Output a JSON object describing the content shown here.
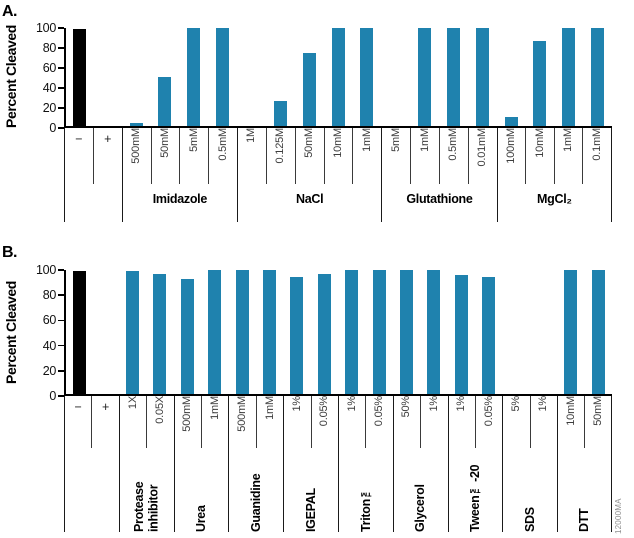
{
  "page": {
    "background": "#ffffff"
  },
  "footer_code": "12000MA",
  "colors": {
    "bar_blue": "#1f82ae",
    "bar_black": "#000000",
    "axis": "#000000",
    "divider": "#3a3a3a"
  },
  "chart_data": [
    {
      "type": "bar",
      "panel": "A.",
      "title": "",
      "ylabel": "Percent Cleaved",
      "xlabel": "",
      "ylim": [
        0,
        100
      ],
      "yticks": [
        "100",
        "80",
        "60",
        "40",
        "20",
        "0"
      ],
      "grid": false,
      "legend": null,
      "groups": [
        {
          "label": "",
          "bars": [
            {
              "tick": "−",
              "value": 99,
              "color": "black"
            },
            {
              "tick": "+",
              "value": 0
            }
          ]
        },
        {
          "label": "Imidazole",
          "bars": [
            {
              "tick": "500mM",
              "value": 3
            },
            {
              "tick": "50mM",
              "value": 50
            },
            {
              "tick": "5mM",
              "value": 100
            },
            {
              "tick": "0.5mM",
              "value": 100
            }
          ]
        },
        {
          "label": "NaCl",
          "bars": [
            {
              "tick": "1M",
              "value": 0
            },
            {
              "tick": "0.125M",
              "value": 26
            },
            {
              "tick": "50mM",
              "value": 74
            },
            {
              "tick": "10mM",
              "value": 100
            },
            {
              "tick": "1mM",
              "value": 100
            }
          ]
        },
        {
          "label": "Glutathione",
          "bars": [
            {
              "tick": "5mM",
              "value": 0
            },
            {
              "tick": "1mM",
              "value": 100
            },
            {
              "tick": "0.5mM",
              "value": 100
            },
            {
              "tick": "0.01mM",
              "value": 100
            }
          ]
        },
        {
          "label": "MgCl₂",
          "bars": [
            {
              "tick": "100mM",
              "value": 9
            },
            {
              "tick": "10mM",
              "value": 87
            },
            {
              "tick": "1mM",
              "value": 100
            },
            {
              "tick": "0.1mM",
              "value": 100
            }
          ]
        }
      ]
    },
    {
      "type": "bar",
      "panel": "B.",
      "title": "",
      "ylabel": "Percent Cleaved",
      "xlabel": "",
      "ylim": [
        0,
        100
      ],
      "yticks": [
        "100",
        "80",
        "60",
        "40",
        "20",
        "0"
      ],
      "grid": false,
      "legend": null,
      "groups": [
        {
          "label": "",
          "bars": [
            {
              "tick": "−",
              "value": 99,
              "color": "black"
            },
            {
              "tick": "+",
              "value": 0
            }
          ]
        },
        {
          "label": "Protease inhibitor",
          "bars": [
            {
              "tick": "1X",
              "value": 99
            },
            {
              "tick": "0.05X",
              "value": 97
            }
          ]
        },
        {
          "label": "Urea",
          "bars": [
            {
              "tick": "500mM",
              "value": 93
            },
            {
              "tick": "1mM",
              "value": 100
            }
          ]
        },
        {
          "label": "Guanidine",
          "bars": [
            {
              "tick": "500mM",
              "value": 100
            },
            {
              "tick": "1mM",
              "value": 100
            }
          ]
        },
        {
          "label": "IGEPAL",
          "bars": [
            {
              "tick": "1%",
              "value": 94
            },
            {
              "tick": "0.05%",
              "value": 97
            }
          ]
        },
        {
          "label": "Triton™",
          "bars": [
            {
              "tick": "1%",
              "value": 100
            },
            {
              "tick": "0.05%",
              "value": 100
            }
          ]
        },
        {
          "label": "Glycerol",
          "bars": [
            {
              "tick": "50%",
              "value": 100
            },
            {
              "tick": "1%",
              "value": 100
            }
          ]
        },
        {
          "label": "Tween™-20",
          "bars": [
            {
              "tick": "1%",
              "value": 96
            },
            {
              "tick": "0.05%",
              "value": 94
            }
          ]
        },
        {
          "label": "SDS",
          "bars": [
            {
              "tick": "5%",
              "value": 0
            },
            {
              "tick": "1%",
              "value": 0
            }
          ]
        },
        {
          "label": "DTT",
          "bars": [
            {
              "tick": "10mM",
              "value": 100
            },
            {
              "tick": "50mM",
              "value": 100
            }
          ]
        }
      ]
    }
  ]
}
